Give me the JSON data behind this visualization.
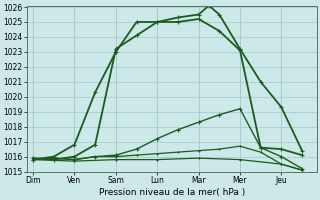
{
  "title": "",
  "xlabel": "Pression niveau de la mer( hPa )",
  "ylabel": "",
  "background_color": "#cce8e8",
  "grid_color": "#aacccc",
  "line_color": "#1a5c1a",
  "days": [
    "Dim",
    "Ven",
    "Sam",
    "Lun",
    "Mar",
    "Mer",
    "Jeu"
  ],
  "day_positions": [
    0,
    1,
    2,
    3,
    4,
    5,
    6
  ],
  "xlim": [
    -0.15,
    6.85
  ],
  "ylim": [
    1015,
    1026
  ],
  "yticks": [
    1015,
    1016,
    1017,
    1018,
    1019,
    1020,
    1021,
    1022,
    1023,
    1024,
    1025,
    1026
  ],
  "series": [
    {
      "x": [
        0.0,
        0.5,
        1.0,
        1.5,
        2.0,
        2.5,
        3.0,
        3.5,
        4.0,
        4.25,
        4.5,
        5.0,
        5.5,
        6.0,
        6.5
      ],
      "y": [
        1015.8,
        1016.0,
        1016.8,
        1020.3,
        1023.0,
        1025.0,
        1025.0,
        1025.3,
        1025.5,
        1026.1,
        1025.5,
        1023.2,
        1021.0,
        1019.3,
        1016.4
      ],
      "lw": 1.3,
      "ms": 3.0
    },
    {
      "x": [
        0.0,
        0.5,
        1.0,
        1.5,
        2.0,
        2.5,
        3.0,
        3.5,
        4.0,
        4.5,
        5.0,
        5.5,
        6.0,
        6.5
      ],
      "y": [
        1015.9,
        1015.8,
        1016.0,
        1016.8,
        1023.2,
        1024.1,
        1025.0,
        1025.0,
        1025.2,
        1024.4,
        1023.1,
        1016.6,
        1016.5,
        1016.1
      ],
      "lw": 1.3,
      "ms": 3.0
    },
    {
      "x": [
        0.0,
        0.5,
        1.0,
        1.5,
        2.0,
        2.5,
        3.0,
        3.5,
        4.0,
        4.5,
        5.0,
        5.5,
        6.0,
        6.5
      ],
      "y": [
        1015.8,
        1015.9,
        1015.8,
        1016.0,
        1016.1,
        1016.5,
        1017.2,
        1017.8,
        1018.3,
        1018.8,
        1019.2,
        1016.6,
        1016.0,
        1015.2
      ],
      "lw": 1.0,
      "ms": 2.5
    },
    {
      "x": [
        0.0,
        0.5,
        1.0,
        1.5,
        2.0,
        2.5,
        3.0,
        3.5,
        4.0,
        4.5,
        5.0,
        5.5,
        6.0,
        6.5
      ],
      "y": [
        1015.8,
        1015.9,
        1015.8,
        1016.0,
        1016.0,
        1016.1,
        1016.2,
        1016.3,
        1016.4,
        1016.5,
        1016.7,
        1016.3,
        1015.5,
        1015.1
      ],
      "lw": 0.9,
      "ms": 2.0
    },
    {
      "x": [
        0.0,
        1.0,
        2.0,
        3.0,
        4.0,
        5.0,
        6.0,
        6.5
      ],
      "y": [
        1015.8,
        1015.7,
        1015.8,
        1015.8,
        1015.9,
        1015.8,
        1015.5,
        1015.1
      ],
      "lw": 0.9,
      "ms": 2.0
    }
  ]
}
